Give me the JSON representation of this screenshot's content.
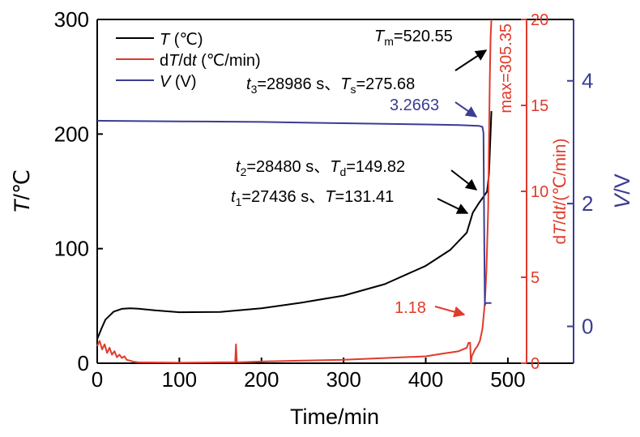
{
  "chart_data": {
    "type": "line",
    "xlabel": "Time/min",
    "xlim": [
      0,
      580
    ],
    "xticks": [
      0,
      100,
      200,
      300,
      400,
      500
    ],
    "axes": {
      "left": {
        "label_main": "T",
        "label_unit": "/℃",
        "lim": [
          0,
          300
        ],
        "ticks": [
          0,
          100,
          200,
          300
        ],
        "color": "#000000"
      },
      "right_red": {
        "label_prefix": "d",
        "label_T": "T",
        "label_mid": "/d",
        "label_t": "t",
        "label_unit": "/(℃/min)",
        "lim": [
          0,
          20
        ],
        "ticks": [
          0,
          5,
          10,
          15,
          20
        ],
        "color": "#e03a2a"
      },
      "right_blue": {
        "label_main": "V",
        "label_unit": "/V",
        "lim": [
          -0.6,
          5.0
        ],
        "ticks": [
          0,
          2,
          4
        ],
        "color": "#3b3c93"
      }
    },
    "legend": {
      "position": "top-left",
      "entries": [
        {
          "series": "T",
          "name": "T",
          "unit": " (℃)",
          "color": "#000000"
        },
        {
          "series": "dTdt",
          "name_d": "d",
          "name_T": "T",
          "name_mid": "/d",
          "name_t": "t",
          "unit": " (℃/min)",
          "color": "#e03a2a"
        },
        {
          "series": "V",
          "name": "V",
          "unit": " (V)",
          "color": "#3b3c93"
        }
      ]
    },
    "series": [
      {
        "key": "T",
        "axis": "left",
        "color": "#000000",
        "x": [
          0,
          5,
          10,
          20,
          30,
          40,
          50,
          70,
          100,
          150,
          200,
          250,
          300,
          350,
          400,
          430,
          450,
          457.27,
          465,
          470,
          474.67,
          477,
          480
        ],
        "y": [
          21,
          30,
          38,
          45,
          47.5,
          48,
          47.6,
          46.2,
          44.5,
          44.8,
          48,
          53,
          59,
          69,
          85,
          99,
          114,
          131.41,
          140,
          145,
          149.82,
          165,
          220
        ]
      },
      {
        "key": "dTdt",
        "axis": "right_red",
        "color": "#e03a2a",
        "x": [
          0,
          3,
          6,
          9,
          12,
          15,
          18,
          21,
          24,
          27,
          30,
          33,
          36,
          40,
          45,
          50,
          100,
          150,
          168,
          169,
          170,
          171,
          172,
          200,
          250,
          300,
          350,
          400,
          420,
          440,
          450,
          452,
          454,
          455,
          456,
          458,
          460,
          463,
          466,
          469,
          472,
          474,
          476,
          477,
          478,
          479,
          480
        ],
        "y": [
          1.0,
          1.3,
          0.8,
          1.1,
          0.6,
          0.9,
          0.5,
          0.7,
          0.35,
          0.5,
          0.3,
          0.4,
          0.2,
          0.15,
          0.08,
          0.05,
          0.03,
          0.05,
          0.05,
          1.1,
          0.1,
          0.05,
          0.05,
          0.1,
          0.15,
          0.2,
          0.3,
          0.4,
          0.55,
          0.7,
          0.9,
          1.18,
          1.2,
          0.0,
          0.4,
          0.6,
          0.8,
          1.0,
          1.3,
          2.0,
          3.5,
          5.5,
          9.0,
          13.0,
          16.5,
          19.0,
          20.0
        ]
      },
      {
        "key": "V",
        "axis": "right_blue",
        "color": "#3b3c93",
        "x": [
          0,
          100,
          200,
          300,
          400,
          440,
          465,
          469,
          470.3,
          471.2,
          472,
          473,
          475,
          480
        ],
        "y": [
          3.35,
          3.34,
          3.33,
          3.31,
          3.29,
          3.28,
          3.266,
          3.25,
          3.15,
          1.5,
          0.35,
          0.38,
          0.38,
          0.38
        ]
      }
    ],
    "annotations": {
      "tm": {
        "main": "T",
        "sub": "m",
        "rest": "=520.55",
        "color": "#000000"
      },
      "t3": {
        "main": "t",
        "sub": "3",
        "rest1": "=28986 s、",
        "main2": "T",
        "sub2": "s",
        "rest2": "=275.68",
        "color": "#000000"
      },
      "v": {
        "text": "3.2663",
        "color": "#3b3c93"
      },
      "t2": {
        "main": "t",
        "sub": "2",
        "rest1": "=28480 s、",
        "main2": "T",
        "sub2": "d",
        "rest2": "=149.82",
        "color": "#000000"
      },
      "t1": {
        "main": "t",
        "sub": "1",
        "rest1": "=27436 s、",
        "main2": "T",
        "rest2": "=131.41",
        "color": "#000000"
      },
      "rate": {
        "text": "1.18",
        "color": "#e03a2a"
      },
      "max": {
        "text": "max=305.35",
        "color": "#e03a2a"
      }
    }
  }
}
